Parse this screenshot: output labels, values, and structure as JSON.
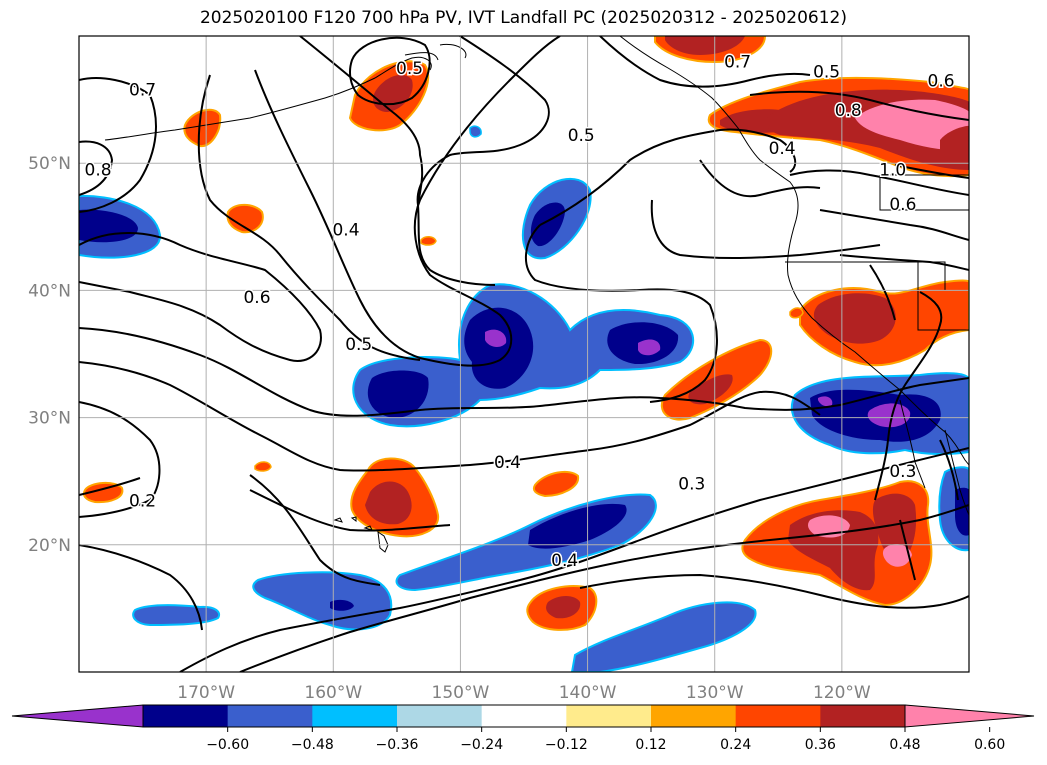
{
  "title": "2025020100 F120 700 hPa PV, IVT Landfall PC (2025020312 - 2025020612)",
  "map": {
    "lon_range": [
      -180,
      -110
    ],
    "lat_range": [
      10,
      60
    ],
    "lon_ticks": [
      {
        "lon": -170,
        "label": "170°W"
      },
      {
        "lon": -160,
        "label": "160°W"
      },
      {
        "lon": -150,
        "label": "150°W"
      },
      {
        "lon": -140,
        "label": "140°W"
      },
      {
        "lon": -130,
        "label": "130°W"
      },
      {
        "lon": -120,
        "label": "120°W"
      }
    ],
    "lat_ticks": [
      {
        "lat": 50,
        "label": "50°N"
      },
      {
        "lat": 40,
        "label": "40°N"
      },
      {
        "lat": 30,
        "label": "30°N"
      },
      {
        "lat": 20,
        "label": "20°N"
      }
    ],
    "gridlines": true,
    "tick_label_color": "#808080"
  },
  "contour_labels": [
    {
      "text": "0.7",
      "lon": -175,
      "lat": 55.8
    },
    {
      "text": "0.8",
      "lon": -178.5,
      "lat": 49.5
    },
    {
      "text": "0.5",
      "lon": -154,
      "lat": 57.5
    },
    {
      "text": "0.4",
      "lon": -159,
      "lat": 44.8
    },
    {
      "text": "0.6",
      "lon": -166,
      "lat": 39.5
    },
    {
      "text": "0.5",
      "lon": -158,
      "lat": 35.8
    },
    {
      "text": "0.5",
      "lon": -140.5,
      "lat": 52.2
    },
    {
      "text": "0.7",
      "lon": -128.2,
      "lat": 58
    },
    {
      "text": "0.5",
      "lon": -121.2,
      "lat": 57.2
    },
    {
      "text": "0.6",
      "lon": -112.2,
      "lat": 56.5
    },
    {
      "text": "0.8",
      "lon": -119.5,
      "lat": 54.2
    },
    {
      "text": "0.4",
      "lon": -124.7,
      "lat": 51.2
    },
    {
      "text": "1.0",
      "lon": -116,
      "lat": 49.5
    },
    {
      "text": "0.6",
      "lon": -115.2,
      "lat": 46.8
    },
    {
      "text": "0.4",
      "lon": -146.3,
      "lat": 26.5
    },
    {
      "text": "0.3",
      "lon": -131.8,
      "lat": 24.8
    },
    {
      "text": "0.3",
      "lon": -115.2,
      "lat": 25.8
    },
    {
      "text": "0.2",
      "lon": -175,
      "lat": 23.5
    },
    {
      "text": "0.4",
      "lon": -141.8,
      "lat": 18.8
    }
  ],
  "colorbar": {
    "colors": [
      "#9932cc",
      "#00008b",
      "#3a5fcd",
      "#00bfff",
      "#add8e6",
      "#ffffff",
      "#ffeb8c",
      "#ffa500",
      "#ff4500",
      "#b22222",
      "#ff82ab"
    ],
    "tick_labels": [
      "−0.60",
      "−0.48",
      "−0.36",
      "−0.24",
      "−0.12",
      "0.12",
      "0.24",
      "0.36",
      "0.48",
      "0.60"
    ]
  }
}
